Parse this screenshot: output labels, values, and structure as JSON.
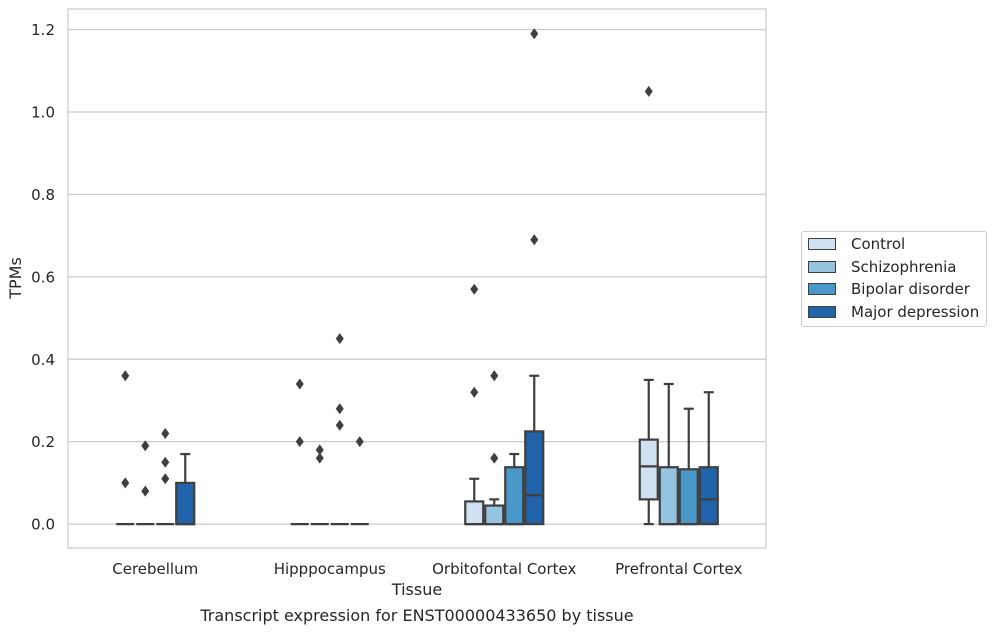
{
  "chart_data": {
    "type": "box",
    "caption": "Transcript expression for ENST00000433650 by tissue",
    "xlabel": "Tissue",
    "ylabel": "TPMs",
    "ylim": [
      -0.058,
      1.25
    ],
    "yticks": [
      "0.0",
      "0.2",
      "0.4",
      "0.6",
      "0.8",
      "1.0",
      "1.2"
    ],
    "ytick_values": [
      0,
      0.2,
      0.4,
      0.6,
      0.8,
      1.0,
      1.2
    ],
    "grid": "horizontal",
    "legend_position": "right",
    "categories": [
      "Cerebellum",
      "Hipppocampus",
      "Orbitofontal Cortex",
      "Prefrontal Cortex"
    ],
    "series": [
      {
        "name": "Control",
        "color": "#d0e1f2",
        "boxes": [
          {
            "q1": 0,
            "median": 0,
            "q3": 0,
            "whisker_low": 0,
            "whisker_high": 0,
            "outliers": [
              0.36,
              0.1
            ]
          },
          {
            "q1": 0,
            "median": 0,
            "q3": 0,
            "whisker_low": 0,
            "whisker_high": 0,
            "outliers": [
              0.34,
              0.2
            ]
          },
          {
            "q1": 0,
            "median": 0,
            "q3": 0.055,
            "whisker_low": 0,
            "whisker_high": 0.11,
            "outliers": [
              0.57,
              0.32
            ]
          },
          {
            "q1": 0.06,
            "median": 0.14,
            "q3": 0.205,
            "whisker_low": 0,
            "whisker_high": 0.35,
            "outliers": [
              1.05
            ]
          }
        ]
      },
      {
        "name": "Schizophrenia",
        "color": "#94c4df",
        "boxes": [
          {
            "q1": 0,
            "median": 0,
            "q3": 0,
            "whisker_low": 0,
            "whisker_high": 0,
            "outliers": [
              0.19,
              0.08
            ]
          },
          {
            "q1": 0,
            "median": 0,
            "q3": 0,
            "whisker_low": 0,
            "whisker_high": 0,
            "outliers": [
              0.18,
              0.16
            ]
          },
          {
            "q1": 0,
            "median": 0,
            "q3": 0.045,
            "whisker_low": 0,
            "whisker_high": 0.06,
            "outliers": [
              0.36,
              0.16
            ]
          },
          {
            "q1": 0,
            "median": 0,
            "q3": 0.138,
            "whisker_low": 0,
            "whisker_high": 0.34,
            "outliers": []
          }
        ]
      },
      {
        "name": "Bipolar disorder",
        "color": "#4a98c9",
        "boxes": [
          {
            "q1": 0,
            "median": 0,
            "q3": 0,
            "whisker_low": 0,
            "whisker_high": 0,
            "outliers": [
              0.22,
              0.15,
              0.11
            ]
          },
          {
            "q1": 0,
            "median": 0,
            "q3": 0,
            "whisker_low": 0,
            "whisker_high": 0,
            "outliers": [
              0.45,
              0.28,
              0.24
            ]
          },
          {
            "q1": 0,
            "median": 0,
            "q3": 0.138,
            "whisker_low": 0,
            "whisker_high": 0.17,
            "outliers": []
          },
          {
            "q1": 0,
            "median": 0,
            "q3": 0.133,
            "whisker_low": 0,
            "whisker_high": 0.28,
            "outliers": []
          }
        ]
      },
      {
        "name": "Major depression",
        "color": "#2163aa",
        "boxes": [
          {
            "q1": 0,
            "median": 0,
            "q3": 0.1,
            "whisker_low": 0,
            "whisker_high": 0.17,
            "outliers": []
          },
          {
            "q1": 0,
            "median": 0,
            "q3": 0,
            "whisker_low": 0,
            "whisker_high": 0,
            "outliers": [
              0.2
            ]
          },
          {
            "q1": 0,
            "median": 0.07,
            "q3": 0.225,
            "whisker_low": 0,
            "whisker_high": 0.36,
            "outliers": [
              1.19,
              0.69
            ]
          },
          {
            "q1": 0,
            "median": 0.06,
            "q3": 0.138,
            "whisker_low": 0,
            "whisker_high": 0.32,
            "outliers": []
          }
        ]
      }
    ]
  }
}
